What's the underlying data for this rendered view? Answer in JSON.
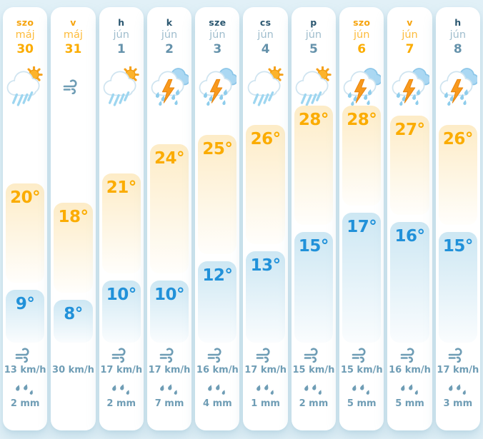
{
  "colors": {
    "background": "#e1f0f7",
    "card": "#ffffff",
    "weekend_name": "#f6a40e",
    "weekend_month": "#fdbb3a",
    "weekend_date": "#fbac00",
    "weekday_name": "#2b5770",
    "weekday_month": "#9fbdcd",
    "weekday_date": "#6592ab",
    "high_temp_text": "#fbac00",
    "low_temp_text": "#2191d9",
    "high_bar_top": "#fdecc7",
    "low_bar_top": "#cde7f3",
    "meta_text": "#6f9db5"
  },
  "days": [
    {
      "name": "szo",
      "month": "máj",
      "date": "30",
      "is_weekend": true,
      "icon": "sun-rain",
      "high": 20,
      "high_label": "20°",
      "low": 9,
      "low_label": "9°",
      "wind": "13 km/h",
      "precipitation": "2 mm"
    },
    {
      "name": "v",
      "month": "máj",
      "date": "31",
      "is_weekend": true,
      "icon": "wind",
      "high": 18,
      "high_label": "18°",
      "low": 8,
      "low_label": "8°",
      "wind": "30 km/h",
      "precipitation": ""
    },
    {
      "name": "h",
      "month": "jún",
      "date": "1",
      "is_weekend": false,
      "icon": "sun-rain",
      "high": 21,
      "high_label": "21°",
      "low": 10,
      "low_label": "10°",
      "wind": "17 km/h",
      "precipitation": "2 mm"
    },
    {
      "name": "k",
      "month": "jún",
      "date": "2",
      "is_weekend": false,
      "icon": "storm",
      "high": 24,
      "high_label": "24°",
      "low": 10,
      "low_label": "10°",
      "wind": "17 km/h",
      "precipitation": "7 mm"
    },
    {
      "name": "sze",
      "month": "jún",
      "date": "3",
      "is_weekend": false,
      "icon": "storm",
      "high": 25,
      "high_label": "25°",
      "low": 12,
      "low_label": "12°",
      "wind": "16 km/h",
      "precipitation": "4 mm"
    },
    {
      "name": "cs",
      "month": "jún",
      "date": "4",
      "is_weekend": false,
      "icon": "sun-rain",
      "high": 26,
      "high_label": "26°",
      "low": 13,
      "low_label": "13°",
      "wind": "17 km/h",
      "precipitation": "1 mm"
    },
    {
      "name": "p",
      "month": "jún",
      "date": "5",
      "is_weekend": false,
      "icon": "sun-rain",
      "high": 28,
      "high_label": "28°",
      "low": 15,
      "low_label": "15°",
      "wind": "15 km/h",
      "precipitation": "2 mm"
    },
    {
      "name": "szo",
      "month": "jún",
      "date": "6",
      "is_weekend": true,
      "icon": "storm",
      "high": 28,
      "high_label": "28°",
      "low": 17,
      "low_label": "17°",
      "wind": "15 km/h",
      "precipitation": "5 mm"
    },
    {
      "name": "v",
      "month": "jún",
      "date": "7",
      "is_weekend": true,
      "icon": "storm",
      "high": 27,
      "high_label": "27°",
      "low": 16,
      "low_label": "16°",
      "wind": "16 km/h",
      "precipitation": "5 mm"
    },
    {
      "name": "h",
      "month": "jún",
      "date": "8",
      "is_weekend": false,
      "icon": "storm",
      "high": 26,
      "high_label": "26°",
      "low": 15,
      "low_label": "15°",
      "wind": "17 km/h",
      "precipitation": "3 mm"
    }
  ]
}
